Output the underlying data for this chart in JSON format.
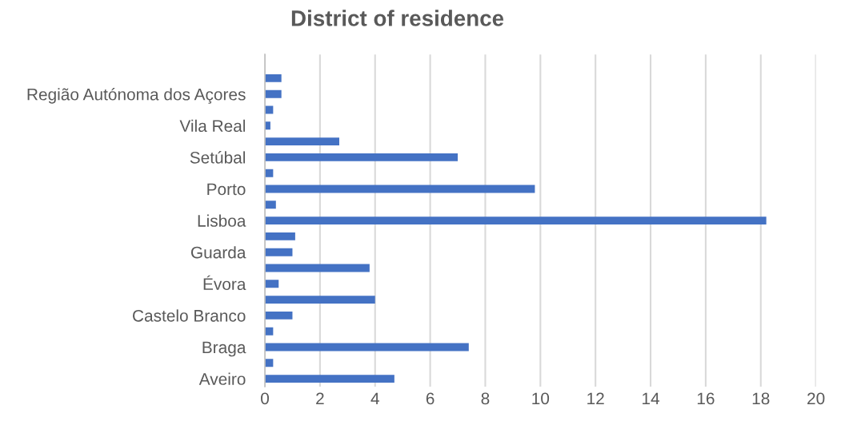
{
  "chart_data": {
    "type": "bar",
    "orientation": "horizontal",
    "title": "District of residence",
    "categories": [
      null,
      "Região Autónoma dos Açores",
      null,
      "Vila Real",
      null,
      "Setúbal",
      null,
      "Porto",
      null,
      "Lisboa",
      null,
      "Guarda",
      null,
      "Évora",
      null,
      "Castelo Branco",
      null,
      "Braga",
      null,
      "Aveiro"
    ],
    "values": [
      0.6,
      0.6,
      0.3,
      0.2,
      2.7,
      7.0,
      0.3,
      9.8,
      0.4,
      18.2,
      1.1,
      1.0,
      3.8,
      0.5,
      4.0,
      1.0,
      0.3,
      7.4,
      0.3,
      4.7
    ],
    "color": "#4472c4",
    "xlim": [
      0,
      20
    ],
    "xticks": [
      0,
      2,
      4,
      6,
      8,
      10,
      12,
      14,
      16,
      18,
      20
    ],
    "grid": "x"
  }
}
